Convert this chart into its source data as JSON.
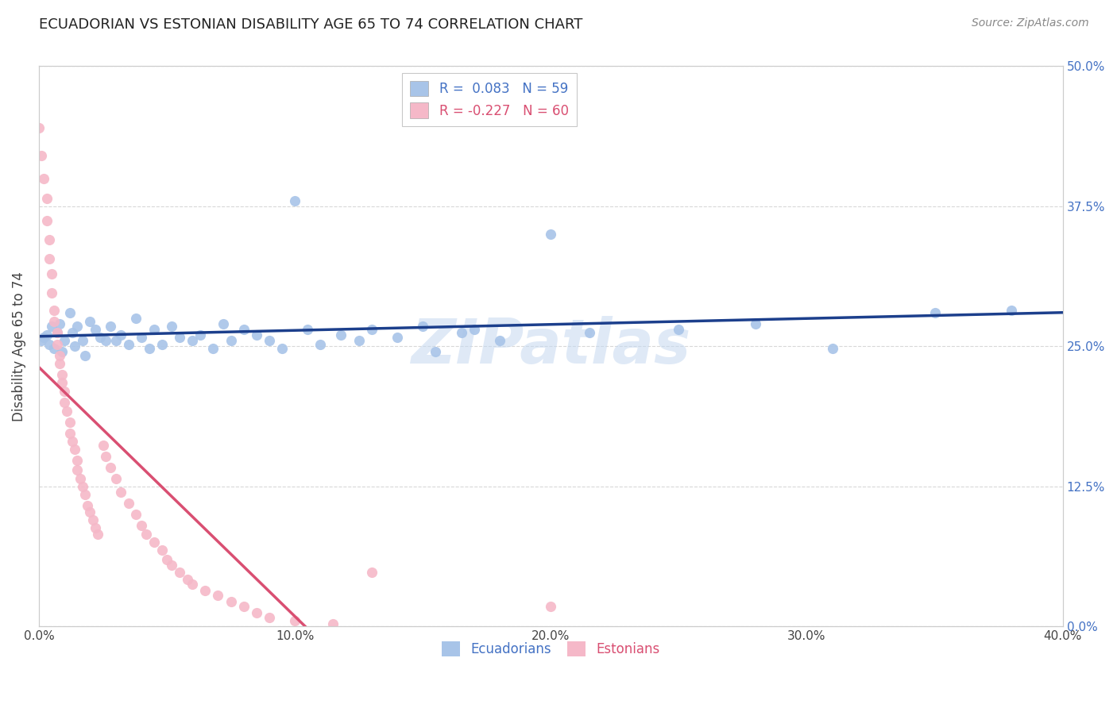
{
  "title": "ECUADORIAN VS ESTONIAN DISABILITY AGE 65 TO 74 CORRELATION CHART",
  "source": "Source: ZipAtlas.com",
  "ylabel": "Disability Age 65 to 74",
  "xlim": [
    0.0,
    0.4
  ],
  "ylim": [
    0.0,
    0.5
  ],
  "legend_r_ecuador": "0.083",
  "legend_n_ecuador": 59,
  "legend_r_estonia": "-0.227",
  "legend_n_estonia": 60,
  "ecuador_color": "#a8c4e8",
  "estonia_color": "#f5b8c8",
  "ecuador_line_color": "#1c3f8c",
  "estonia_line_color": "#d94f72",
  "estonia_line_dashed_color": "#f0b8c8",
  "background_color": "#ffffff",
  "grid_color": "#d8d8d8",
  "ecuador_points": [
    [
      0.001,
      0.255
    ],
    [
      0.002,
      0.258
    ],
    [
      0.003,
      0.26
    ],
    [
      0.004,
      0.252
    ],
    [
      0.005,
      0.268
    ],
    [
      0.006,
      0.248
    ],
    [
      0.007,
      0.262
    ],
    [
      0.008,
      0.27
    ],
    [
      0.009,
      0.245
    ],
    [
      0.01,
      0.255
    ],
    [
      0.012,
      0.28
    ],
    [
      0.013,
      0.262
    ],
    [
      0.014,
      0.25
    ],
    [
      0.015,
      0.268
    ],
    [
      0.017,
      0.255
    ],
    [
      0.018,
      0.242
    ],
    [
      0.02,
      0.272
    ],
    [
      0.022,
      0.265
    ],
    [
      0.024,
      0.258
    ],
    [
      0.026,
      0.255
    ],
    [
      0.028,
      0.268
    ],
    [
      0.03,
      0.255
    ],
    [
      0.032,
      0.26
    ],
    [
      0.035,
      0.252
    ],
    [
      0.038,
      0.275
    ],
    [
      0.04,
      0.258
    ],
    [
      0.043,
      0.248
    ],
    [
      0.045,
      0.265
    ],
    [
      0.048,
      0.252
    ],
    [
      0.052,
      0.268
    ],
    [
      0.055,
      0.258
    ],
    [
      0.06,
      0.255
    ],
    [
      0.063,
      0.26
    ],
    [
      0.068,
      0.248
    ],
    [
      0.072,
      0.27
    ],
    [
      0.075,
      0.255
    ],
    [
      0.08,
      0.265
    ],
    [
      0.085,
      0.26
    ],
    [
      0.09,
      0.255
    ],
    [
      0.095,
      0.248
    ],
    [
      0.1,
      0.38
    ],
    [
      0.105,
      0.265
    ],
    [
      0.11,
      0.252
    ],
    [
      0.118,
      0.26
    ],
    [
      0.125,
      0.255
    ],
    [
      0.13,
      0.265
    ],
    [
      0.14,
      0.258
    ],
    [
      0.15,
      0.268
    ],
    [
      0.155,
      0.245
    ],
    [
      0.165,
      0.262
    ],
    [
      0.17,
      0.265
    ],
    [
      0.18,
      0.255
    ],
    [
      0.2,
      0.35
    ],
    [
      0.215,
      0.262
    ],
    [
      0.25,
      0.265
    ],
    [
      0.28,
      0.27
    ],
    [
      0.31,
      0.248
    ],
    [
      0.35,
      0.28
    ],
    [
      0.38,
      0.282
    ]
  ],
  "estonia_points": [
    [
      0.0,
      0.445
    ],
    [
      0.001,
      0.42
    ],
    [
      0.002,
      0.4
    ],
    [
      0.003,
      0.382
    ],
    [
      0.003,
      0.362
    ],
    [
      0.004,
      0.345
    ],
    [
      0.004,
      0.328
    ],
    [
      0.005,
      0.315
    ],
    [
      0.005,
      0.298
    ],
    [
      0.006,
      0.282
    ],
    [
      0.006,
      0.272
    ],
    [
      0.007,
      0.262
    ],
    [
      0.007,
      0.252
    ],
    [
      0.008,
      0.242
    ],
    [
      0.008,
      0.235
    ],
    [
      0.009,
      0.225
    ],
    [
      0.009,
      0.218
    ],
    [
      0.01,
      0.21
    ],
    [
      0.01,
      0.2
    ],
    [
      0.011,
      0.192
    ],
    [
      0.012,
      0.182
    ],
    [
      0.012,
      0.172
    ],
    [
      0.013,
      0.165
    ],
    [
      0.014,
      0.158
    ],
    [
      0.015,
      0.148
    ],
    [
      0.015,
      0.14
    ],
    [
      0.016,
      0.132
    ],
    [
      0.017,
      0.125
    ],
    [
      0.018,
      0.118
    ],
    [
      0.019,
      0.108
    ],
    [
      0.02,
      0.102
    ],
    [
      0.021,
      0.095
    ],
    [
      0.022,
      0.088
    ],
    [
      0.023,
      0.082
    ],
    [
      0.025,
      0.162
    ],
    [
      0.026,
      0.152
    ],
    [
      0.028,
      0.142
    ],
    [
      0.03,
      0.132
    ],
    [
      0.032,
      0.12
    ],
    [
      0.035,
      0.11
    ],
    [
      0.038,
      0.1
    ],
    [
      0.04,
      0.09
    ],
    [
      0.042,
      0.082
    ],
    [
      0.045,
      0.075
    ],
    [
      0.048,
      0.068
    ],
    [
      0.05,
      0.06
    ],
    [
      0.052,
      0.055
    ],
    [
      0.055,
      0.048
    ],
    [
      0.058,
      0.042
    ],
    [
      0.06,
      0.038
    ],
    [
      0.065,
      0.032
    ],
    [
      0.07,
      0.028
    ],
    [
      0.075,
      0.022
    ],
    [
      0.08,
      0.018
    ],
    [
      0.085,
      0.012
    ],
    [
      0.09,
      0.008
    ],
    [
      0.1,
      0.005
    ],
    [
      0.115,
      0.002
    ],
    [
      0.13,
      0.048
    ],
    [
      0.2,
      0.018
    ]
  ]
}
